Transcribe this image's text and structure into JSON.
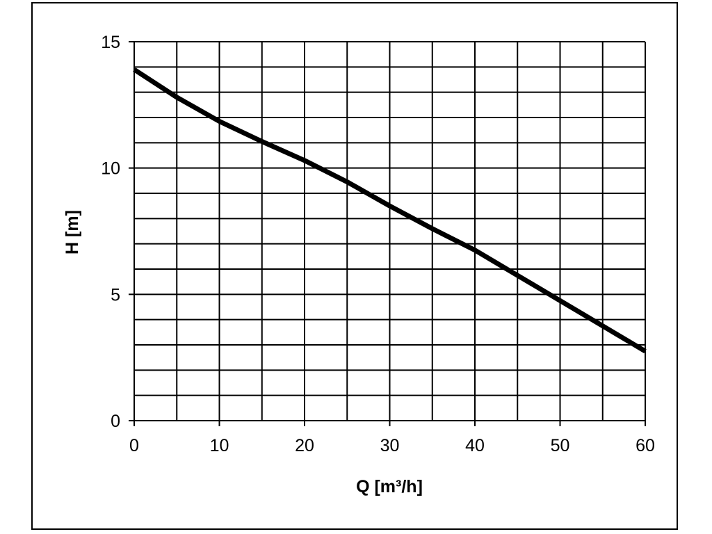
{
  "chart_data": {
    "type": "line",
    "xlabel": "Q [m³/h]",
    "ylabel": "H [m]",
    "xlim": [
      0,
      60
    ],
    "ylim": [
      0,
      15
    ],
    "x_ticks": [
      "0",
      "10",
      "20",
      "30",
      "40",
      "50",
      "60"
    ],
    "y_ticks": [
      "0",
      "5",
      "10",
      "15"
    ],
    "minor_grid": {
      "x_step": 5,
      "y_step": 1
    },
    "grid": true,
    "legend": "none",
    "series": [
      {
        "x": [
          0,
          5,
          10,
          15,
          20,
          25,
          30,
          35,
          40,
          45,
          50,
          55,
          60
        ],
        "y": [
          13.9,
          12.8,
          11.85,
          11.05,
          10.3,
          9.45,
          8.5,
          7.6,
          6.75,
          5.75,
          4.75,
          3.75,
          2.75
        ]
      }
    ],
    "colors": {
      "line": "#000000",
      "grid": "#000000",
      "background": "#ffffff"
    }
  }
}
